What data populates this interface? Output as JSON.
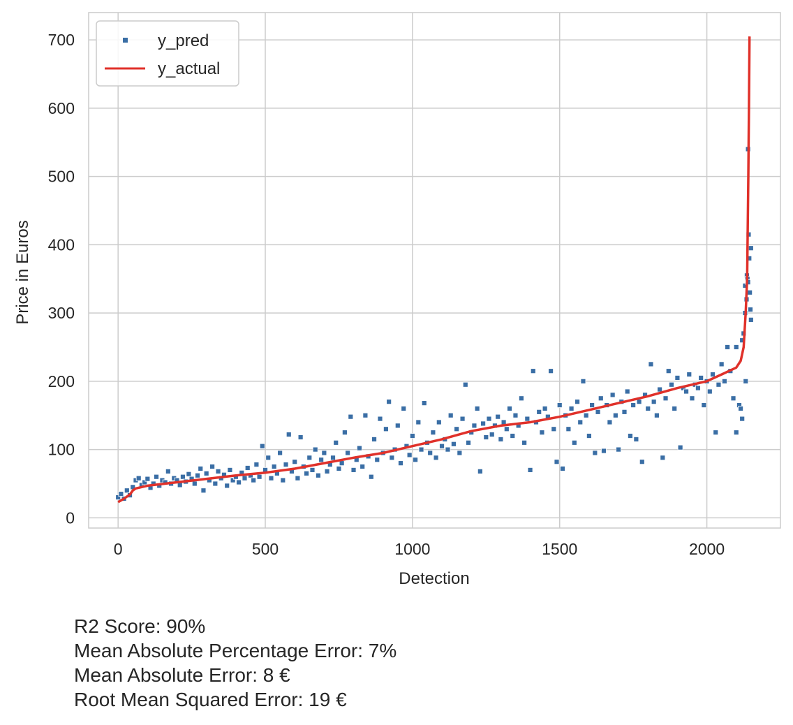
{
  "chart_data": {
    "type": "scatter",
    "xlabel": "Detection",
    "ylabel": "Price in Euros",
    "xlim": [
      -100,
      2250
    ],
    "ylim": [
      -15,
      740
    ],
    "xticks": [
      0,
      500,
      1000,
      1500,
      2000
    ],
    "yticks": [
      0,
      100,
      200,
      300,
      400,
      500,
      600,
      700
    ],
    "grid": true,
    "legend_position": "top-left",
    "series": [
      {
        "name": "y_pred",
        "kind": "scatter",
        "color": "#3a6ea5",
        "points": [
          [
            0,
            30
          ],
          [
            10,
            35
          ],
          [
            20,
            28
          ],
          [
            30,
            40
          ],
          [
            40,
            33
          ],
          [
            50,
            45
          ],
          [
            60,
            55
          ],
          [
            70,
            58
          ],
          [
            80,
            48
          ],
          [
            90,
            52
          ],
          [
            100,
            57
          ],
          [
            110,
            44
          ],
          [
            120,
            50
          ],
          [
            130,
            60
          ],
          [
            140,
            47
          ],
          [
            150,
            55
          ],
          [
            160,
            52
          ],
          [
            170,
            68
          ],
          [
            180,
            50
          ],
          [
            190,
            58
          ],
          [
            200,
            55
          ],
          [
            210,
            48
          ],
          [
            220,
            60
          ],
          [
            230,
            53
          ],
          [
            240,
            64
          ],
          [
            250,
            57
          ],
          [
            260,
            50
          ],
          [
            270,
            62
          ],
          [
            280,
            72
          ],
          [
            290,
            40
          ],
          [
            300,
            65
          ],
          [
            310,
            55
          ],
          [
            320,
            75
          ],
          [
            330,
            50
          ],
          [
            340,
            68
          ],
          [
            350,
            58
          ],
          [
            360,
            63
          ],
          [
            370,
            47
          ],
          [
            380,
            70
          ],
          [
            390,
            55
          ],
          [
            400,
            60
          ],
          [
            410,
            52
          ],
          [
            420,
            66
          ],
          [
            430,
            58
          ],
          [
            440,
            73
          ],
          [
            450,
            62
          ],
          [
            460,
            55
          ],
          [
            470,
            78
          ],
          [
            480,
            60
          ],
          [
            490,
            105
          ],
          [
            500,
            70
          ],
          [
            510,
            88
          ],
          [
            520,
            58
          ],
          [
            530,
            75
          ],
          [
            540,
            65
          ],
          [
            550,
            95
          ],
          [
            560,
            55
          ],
          [
            570,
            78
          ],
          [
            580,
            122
          ],
          [
            590,
            68
          ],
          [
            600,
            82
          ],
          [
            610,
            58
          ],
          [
            620,
            118
          ],
          [
            630,
            75
          ],
          [
            640,
            65
          ],
          [
            650,
            88
          ],
          [
            660,
            70
          ],
          [
            670,
            100
          ],
          [
            680,
            62
          ],
          [
            690,
            85
          ],
          [
            700,
            95
          ],
          [
            710,
            68
          ],
          [
            720,
            78
          ],
          [
            730,
            88
          ],
          [
            740,
            110
          ],
          [
            750,
            72
          ],
          [
            760,
            80
          ],
          [
            770,
            125
          ],
          [
            780,
            95
          ],
          [
            790,
            148
          ],
          [
            800,
            70
          ],
          [
            810,
            85
          ],
          [
            820,
            102
          ],
          [
            830,
            75
          ],
          [
            840,
            150
          ],
          [
            850,
            90
          ],
          [
            860,
            60
          ],
          [
            870,
            115
          ],
          [
            880,
            85
          ],
          [
            890,
            145
          ],
          [
            900,
            95
          ],
          [
            910,
            130
          ],
          [
            920,
            170
          ],
          [
            930,
            88
          ],
          [
            940,
            100
          ],
          [
            950,
            135
          ],
          [
            960,
            80
          ],
          [
            970,
            160
          ],
          [
            980,
            105
          ],
          [
            990,
            92
          ],
          [
            1000,
            120
          ],
          [
            1010,
            85
          ],
          [
            1020,
            140
          ],
          [
            1030,
            100
          ],
          [
            1040,
            168
          ],
          [
            1050,
            110
          ],
          [
            1060,
            95
          ],
          [
            1070,
            125
          ],
          [
            1080,
            88
          ],
          [
            1090,
            140
          ],
          [
            1100,
            105
          ],
          [
            1110,
            115
          ],
          [
            1120,
            100
          ],
          [
            1130,
            150
          ],
          [
            1140,
            108
          ],
          [
            1150,
            130
          ],
          [
            1160,
            95
          ],
          [
            1170,
            145
          ],
          [
            1180,
            195
          ],
          [
            1190,
            110
          ],
          [
            1200,
            125
          ],
          [
            1210,
            135
          ],
          [
            1220,
            160
          ],
          [
            1230,
            68
          ],
          [
            1240,
            138
          ],
          [
            1250,
            118
          ],
          [
            1260,
            145
          ],
          [
            1270,
            122
          ],
          [
            1280,
            135
          ],
          [
            1290,
            148
          ],
          [
            1300,
            115
          ],
          [
            1310,
            140
          ],
          [
            1320,
            130
          ],
          [
            1330,
            160
          ],
          [
            1340,
            120
          ],
          [
            1350,
            150
          ],
          [
            1360,
            135
          ],
          [
            1370,
            175
          ],
          [
            1380,
            110
          ],
          [
            1390,
            145
          ],
          [
            1400,
            70
          ],
          [
            1410,
            215
          ],
          [
            1420,
            140
          ],
          [
            1430,
            155
          ],
          [
            1440,
            125
          ],
          [
            1450,
            160
          ],
          [
            1460,
            148
          ],
          [
            1470,
            215
          ],
          [
            1480,
            130
          ],
          [
            1490,
            82
          ],
          [
            1500,
            165
          ],
          [
            1510,
            72
          ],
          [
            1520,
            150
          ],
          [
            1530,
            130
          ],
          [
            1540,
            160
          ],
          [
            1550,
            110
          ],
          [
            1560,
            170
          ],
          [
            1570,
            140
          ],
          [
            1580,
            200
          ],
          [
            1590,
            150
          ],
          [
            1600,
            120
          ],
          [
            1610,
            165
          ],
          [
            1620,
            95
          ],
          [
            1630,
            155
          ],
          [
            1640,
            175
          ],
          [
            1650,
            98
          ],
          [
            1660,
            165
          ],
          [
            1670,
            140
          ],
          [
            1680,
            180
          ],
          [
            1690,
            150
          ],
          [
            1700,
            100
          ],
          [
            1710,
            170
          ],
          [
            1720,
            155
          ],
          [
            1730,
            185
          ],
          [
            1740,
            120
          ],
          [
            1750,
            165
          ],
          [
            1760,
            115
          ],
          [
            1770,
            170
          ],
          [
            1780,
            82
          ],
          [
            1790,
            180
          ],
          [
            1800,
            160
          ],
          [
            1810,
            225
          ],
          [
            1820,
            170
          ],
          [
            1830,
            150
          ],
          [
            1840,
            188
          ],
          [
            1850,
            88
          ],
          [
            1860,
            175
          ],
          [
            1870,
            215
          ],
          [
            1880,
            195
          ],
          [
            1890,
            160
          ],
          [
            1900,
            205
          ],
          [
            1910,
            103
          ],
          [
            1920,
            190
          ],
          [
            1930,
            185
          ],
          [
            1940,
            210
          ],
          [
            1950,
            175
          ],
          [
            1960,
            195
          ],
          [
            1970,
            190
          ],
          [
            1980,
            205
          ],
          [
            1990,
            165
          ],
          [
            2000,
            200
          ],
          [
            2010,
            185
          ],
          [
            2020,
            210
          ],
          [
            2030,
            125
          ],
          [
            2040,
            195
          ],
          [
            2050,
            225
          ],
          [
            2060,
            200
          ],
          [
            2070,
            250
          ],
          [
            2080,
            215
          ],
          [
            2090,
            175
          ],
          [
            2100,
            125
          ],
          [
            2100,
            250
          ],
          [
            2110,
            165
          ],
          [
            2115,
            160
          ],
          [
            2120,
            145
          ],
          [
            2120,
            260
          ],
          [
            2125,
            270
          ],
          [
            2130,
            300
          ],
          [
            2130,
            340
          ],
          [
            2132,
            200
          ],
          [
            2135,
            320
          ],
          [
            2136,
            355
          ],
          [
            2138,
            350
          ],
          [
            2140,
            345
          ],
          [
            2140,
            540
          ],
          [
            2142,
            415
          ],
          [
            2144,
            380
          ],
          [
            2146,
            330
          ],
          [
            2148,
            305
          ],
          [
            2150,
            290
          ],
          [
            2150,
            395
          ]
        ]
      },
      {
        "name": "y_actual",
        "kind": "line",
        "color": "#e0312a",
        "points": [
          [
            0,
            23
          ],
          [
            20,
            28
          ],
          [
            40,
            34
          ],
          [
            50,
            40
          ],
          [
            60,
            43
          ],
          [
            100,
            47
          ],
          [
            200,
            52
          ],
          [
            300,
            57
          ],
          [
            400,
            62
          ],
          [
            500,
            66
          ],
          [
            600,
            72
          ],
          [
            700,
            80
          ],
          [
            800,
            88
          ],
          [
            900,
            95
          ],
          [
            1000,
            105
          ],
          [
            1100,
            115
          ],
          [
            1200,
            127
          ],
          [
            1300,
            135
          ],
          [
            1400,
            140
          ],
          [
            1500,
            148
          ],
          [
            1600,
            158
          ],
          [
            1700,
            168
          ],
          [
            1800,
            178
          ],
          [
            1900,
            190
          ],
          [
            2000,
            200
          ],
          [
            2050,
            210
          ],
          [
            2100,
            220
          ],
          [
            2115,
            230
          ],
          [
            2125,
            250
          ],
          [
            2132,
            300
          ],
          [
            2137,
            350
          ],
          [
            2141,
            500
          ],
          [
            2143,
            600
          ],
          [
            2145,
            705
          ]
        ]
      }
    ]
  },
  "metrics": [
    "R2 Score: 90%",
    "Mean Absolute Percentage Error: 7%",
    "Mean Absolute Error: 8 €",
    "Root Mean Squared Error: 19 €"
  ]
}
